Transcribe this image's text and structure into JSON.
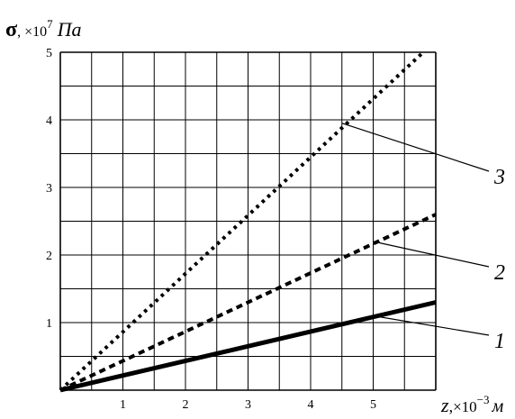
{
  "chart_data": {
    "type": "line",
    "ylabel": {
      "symbol": "σ",
      "sep": ", ",
      "mult": "×10",
      "exp": "7",
      "unit": "Па"
    },
    "xlabel": {
      "symbol": "z",
      "sep": ",",
      "mult": "×10",
      "exp": "−3",
      "unit": "м"
    },
    "xlim": [
      0,
      6
    ],
    "ylim": [
      0,
      5
    ],
    "grid": true,
    "x_ticks": [
      "1",
      "2",
      "3",
      "4",
      "5"
    ],
    "y_ticks": [
      "1",
      "2",
      "3",
      "4",
      "5"
    ],
    "series": [
      {
        "x": [
          0,
          6
        ],
        "y": [
          0,
          1.3
        ],
        "style": "solid",
        "label_point": [
          5,
          1.1
        ],
        "callout": "1"
      },
      {
        "x": [
          0,
          6
        ],
        "y": [
          0,
          2.6
        ],
        "style": "dashed",
        "label_point": [
          5,
          2.2
        ],
        "callout": "2"
      },
      {
        "x": [
          0,
          5.8
        ],
        "y": [
          0,
          5.0
        ],
        "style": "dotted",
        "label_point": [
          4.5,
          3.95
        ],
        "callout": "3"
      }
    ]
  }
}
